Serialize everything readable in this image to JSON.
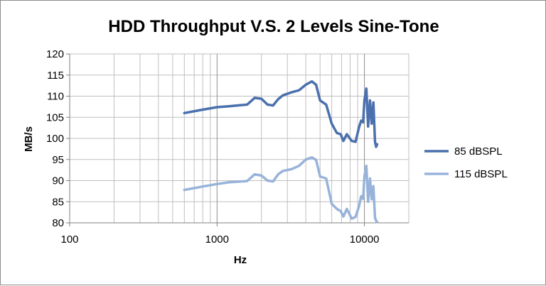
{
  "chart_data": {
    "type": "line",
    "title": "HDD Throughput V.S. 2 Levels Sine-Tone",
    "xlabel": "Hz",
    "ylabel": "MB/s",
    "xscale": "log",
    "xlim": [
      100,
      20000
    ],
    "ylim": [
      80,
      120
    ],
    "x_ticks": [
      100,
      1000,
      10000
    ],
    "x_tick_labels": [
      "100",
      "1000",
      "10000"
    ],
    "y_ticks": [
      80,
      85,
      90,
      95,
      100,
      105,
      110,
      115,
      120
    ],
    "y_tick_labels": [
      "80",
      "85",
      "90",
      "95",
      "100",
      "105",
      "110",
      "115",
      "120"
    ],
    "grid": true,
    "legend_position": "right",
    "series": [
      {
        "name": "85 dBSPL",
        "color": "#4a70ad",
        "x": [
          600,
          800,
          1000,
          1200,
          1600,
          1800,
          2000,
          2200,
          2400,
          2600,
          2800,
          3200,
          3600,
          4000,
          4400,
          4700,
          5000,
          5500,
          6000,
          6500,
          6900,
          7200,
          7600,
          8200,
          8700,
          9200,
          9500,
          9800,
          10000,
          10300,
          10600,
          10900,
          11200,
          11500,
          11800,
          12000,
          12200
        ],
        "y": [
          106,
          106.8,
          107.4,
          107.6,
          108.0,
          109.6,
          109.4,
          108.0,
          107.8,
          109.3,
          110.2,
          110.9,
          111.4,
          112.7,
          113.5,
          112.7,
          109.0,
          108.0,
          103.5,
          101.3,
          101.0,
          99.4,
          101.0,
          99.4,
          99.2,
          102.7,
          104.2,
          103.8,
          109.0,
          111.8,
          102.8,
          109.0,
          103.5,
          108.5,
          99.2,
          98.0,
          98.6
        ]
      },
      {
        "name": "115 dBSPL",
        "color": "#98b3da",
        "x": [
          600,
          800,
          1000,
          1200,
          1600,
          1800,
          2000,
          2200,
          2400,
          2600,
          2800,
          3200,
          3600,
          4000,
          4400,
          4700,
          5000,
          5500,
          6000,
          6500,
          6900,
          7200,
          7600,
          8200,
          8700,
          9200,
          9500,
          9800,
          10000,
          10300,
          10600,
          10900,
          11200,
          11500,
          11800,
          12000,
          12200
        ],
        "y": [
          87.8,
          88.6,
          89.2,
          89.6,
          89.9,
          91.5,
          91.2,
          90.0,
          89.8,
          91.5,
          92.3,
          92.7,
          93.5,
          95.0,
          95.5,
          94.9,
          91.0,
          90.5,
          84.5,
          83.3,
          82.8,
          81.5,
          83.3,
          81.0,
          81.4,
          84.0,
          86.3,
          85.7,
          91.0,
          93.5,
          85.0,
          90.5,
          85.6,
          88.7,
          81.2,
          80.5,
          80.2
        ]
      }
    ]
  }
}
